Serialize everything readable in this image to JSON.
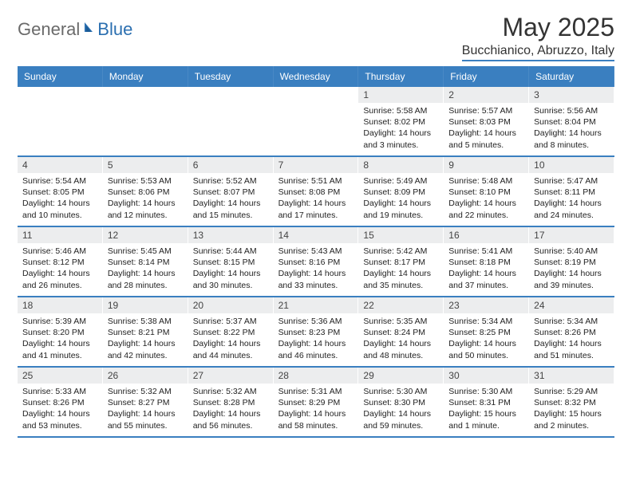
{
  "brand": {
    "part1": "General",
    "part2": "Blue"
  },
  "title": "May 2025",
  "location": "Bucchianico, Abruzzo, Italy",
  "colors": {
    "header_bg": "#3a7fc0",
    "daynum_bg": "#ecedee",
    "text": "#222222",
    "brand_gray": "#6a6a6a",
    "brand_blue": "#2b6fb0"
  },
  "dow": [
    "Sunday",
    "Monday",
    "Tuesday",
    "Wednesday",
    "Thursday",
    "Friday",
    "Saturday"
  ],
  "weeks": [
    [
      {
        "n": "",
        "sr": "",
        "ss": "",
        "dl": ""
      },
      {
        "n": "",
        "sr": "",
        "ss": "",
        "dl": ""
      },
      {
        "n": "",
        "sr": "",
        "ss": "",
        "dl": ""
      },
      {
        "n": "",
        "sr": "",
        "ss": "",
        "dl": ""
      },
      {
        "n": "1",
        "sr": "Sunrise: 5:58 AM",
        "ss": "Sunset: 8:02 PM",
        "dl": "Daylight: 14 hours and 3 minutes."
      },
      {
        "n": "2",
        "sr": "Sunrise: 5:57 AM",
        "ss": "Sunset: 8:03 PM",
        "dl": "Daylight: 14 hours and 5 minutes."
      },
      {
        "n": "3",
        "sr": "Sunrise: 5:56 AM",
        "ss": "Sunset: 8:04 PM",
        "dl": "Daylight: 14 hours and 8 minutes."
      }
    ],
    [
      {
        "n": "4",
        "sr": "Sunrise: 5:54 AM",
        "ss": "Sunset: 8:05 PM",
        "dl": "Daylight: 14 hours and 10 minutes."
      },
      {
        "n": "5",
        "sr": "Sunrise: 5:53 AM",
        "ss": "Sunset: 8:06 PM",
        "dl": "Daylight: 14 hours and 12 minutes."
      },
      {
        "n": "6",
        "sr": "Sunrise: 5:52 AM",
        "ss": "Sunset: 8:07 PM",
        "dl": "Daylight: 14 hours and 15 minutes."
      },
      {
        "n": "7",
        "sr": "Sunrise: 5:51 AM",
        "ss": "Sunset: 8:08 PM",
        "dl": "Daylight: 14 hours and 17 minutes."
      },
      {
        "n": "8",
        "sr": "Sunrise: 5:49 AM",
        "ss": "Sunset: 8:09 PM",
        "dl": "Daylight: 14 hours and 19 minutes."
      },
      {
        "n": "9",
        "sr": "Sunrise: 5:48 AM",
        "ss": "Sunset: 8:10 PM",
        "dl": "Daylight: 14 hours and 22 minutes."
      },
      {
        "n": "10",
        "sr": "Sunrise: 5:47 AM",
        "ss": "Sunset: 8:11 PM",
        "dl": "Daylight: 14 hours and 24 minutes."
      }
    ],
    [
      {
        "n": "11",
        "sr": "Sunrise: 5:46 AM",
        "ss": "Sunset: 8:12 PM",
        "dl": "Daylight: 14 hours and 26 minutes."
      },
      {
        "n": "12",
        "sr": "Sunrise: 5:45 AM",
        "ss": "Sunset: 8:14 PM",
        "dl": "Daylight: 14 hours and 28 minutes."
      },
      {
        "n": "13",
        "sr": "Sunrise: 5:44 AM",
        "ss": "Sunset: 8:15 PM",
        "dl": "Daylight: 14 hours and 30 minutes."
      },
      {
        "n": "14",
        "sr": "Sunrise: 5:43 AM",
        "ss": "Sunset: 8:16 PM",
        "dl": "Daylight: 14 hours and 33 minutes."
      },
      {
        "n": "15",
        "sr": "Sunrise: 5:42 AM",
        "ss": "Sunset: 8:17 PM",
        "dl": "Daylight: 14 hours and 35 minutes."
      },
      {
        "n": "16",
        "sr": "Sunrise: 5:41 AM",
        "ss": "Sunset: 8:18 PM",
        "dl": "Daylight: 14 hours and 37 minutes."
      },
      {
        "n": "17",
        "sr": "Sunrise: 5:40 AM",
        "ss": "Sunset: 8:19 PM",
        "dl": "Daylight: 14 hours and 39 minutes."
      }
    ],
    [
      {
        "n": "18",
        "sr": "Sunrise: 5:39 AM",
        "ss": "Sunset: 8:20 PM",
        "dl": "Daylight: 14 hours and 41 minutes."
      },
      {
        "n": "19",
        "sr": "Sunrise: 5:38 AM",
        "ss": "Sunset: 8:21 PM",
        "dl": "Daylight: 14 hours and 42 minutes."
      },
      {
        "n": "20",
        "sr": "Sunrise: 5:37 AM",
        "ss": "Sunset: 8:22 PM",
        "dl": "Daylight: 14 hours and 44 minutes."
      },
      {
        "n": "21",
        "sr": "Sunrise: 5:36 AM",
        "ss": "Sunset: 8:23 PM",
        "dl": "Daylight: 14 hours and 46 minutes."
      },
      {
        "n": "22",
        "sr": "Sunrise: 5:35 AM",
        "ss": "Sunset: 8:24 PM",
        "dl": "Daylight: 14 hours and 48 minutes."
      },
      {
        "n": "23",
        "sr": "Sunrise: 5:34 AM",
        "ss": "Sunset: 8:25 PM",
        "dl": "Daylight: 14 hours and 50 minutes."
      },
      {
        "n": "24",
        "sr": "Sunrise: 5:34 AM",
        "ss": "Sunset: 8:26 PM",
        "dl": "Daylight: 14 hours and 51 minutes."
      }
    ],
    [
      {
        "n": "25",
        "sr": "Sunrise: 5:33 AM",
        "ss": "Sunset: 8:26 PM",
        "dl": "Daylight: 14 hours and 53 minutes."
      },
      {
        "n": "26",
        "sr": "Sunrise: 5:32 AM",
        "ss": "Sunset: 8:27 PM",
        "dl": "Daylight: 14 hours and 55 minutes."
      },
      {
        "n": "27",
        "sr": "Sunrise: 5:32 AM",
        "ss": "Sunset: 8:28 PM",
        "dl": "Daylight: 14 hours and 56 minutes."
      },
      {
        "n": "28",
        "sr": "Sunrise: 5:31 AM",
        "ss": "Sunset: 8:29 PM",
        "dl": "Daylight: 14 hours and 58 minutes."
      },
      {
        "n": "29",
        "sr": "Sunrise: 5:30 AM",
        "ss": "Sunset: 8:30 PM",
        "dl": "Daylight: 14 hours and 59 minutes."
      },
      {
        "n": "30",
        "sr": "Sunrise: 5:30 AM",
        "ss": "Sunset: 8:31 PM",
        "dl": "Daylight: 15 hours and 1 minute."
      },
      {
        "n": "31",
        "sr": "Sunrise: 5:29 AM",
        "ss": "Sunset: 8:32 PM",
        "dl": "Daylight: 15 hours and 2 minutes."
      }
    ]
  ]
}
